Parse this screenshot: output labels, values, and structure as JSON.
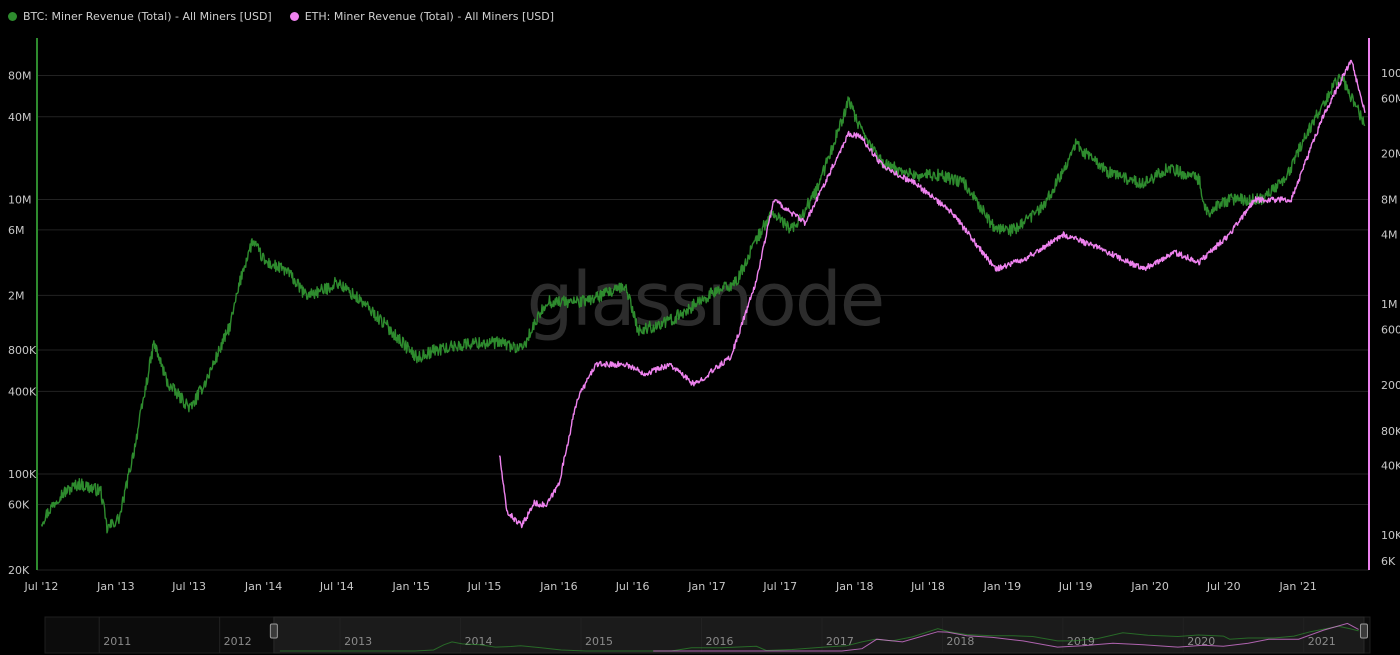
{
  "legend": [
    {
      "label": "BTC: Miner Revenue (Total) - All Miners [USD]",
      "color": "#2e8b2e"
    },
    {
      "label": "ETH: Miner Revenue (Total) - All Miners [USD]",
      "color": "#ee82ee"
    }
  ],
  "watermark": "glassnode",
  "colors": {
    "btc": "#2e8b2e",
    "eth": "#ee82ee",
    "grid": "#222222",
    "axis_left": "#2e8b2e",
    "axis_right": "#ee82ee"
  },
  "chart_data": {
    "type": "line",
    "x_ticks": [
      "Jul '12",
      "Jan '13",
      "Jul '13",
      "Jan '14",
      "Jul '14",
      "Jan '15",
      "Jul '15",
      "Jan '16",
      "Jul '16",
      "Jan '17",
      "Jul '17",
      "Jan '18",
      "Jul '18",
      "Jan '19",
      "Jul '19",
      "Jan '20",
      "Jul '20",
      "Jan '21"
    ],
    "x_range": [
      "2012-06-20",
      "2021-06-25"
    ],
    "y_left": {
      "scale": "log",
      "range": [
        20000,
        150000000
      ],
      "ticks": [
        "20K",
        "60K",
        "100K",
        "400K",
        "800K",
        "2M",
        "6M",
        "10M",
        "40M",
        "80M"
      ],
      "color": "#2e8b2e"
    },
    "y_right": {
      "scale": "log",
      "range": [
        5000,
        200000000
      ],
      "ticks": [
        "6K",
        "10K",
        "40K",
        "80K",
        "200K",
        "600K",
        "1M",
        "4M",
        "8M",
        "20M",
        "60M",
        "100M"
      ],
      "color": "#ee82ee"
    },
    "grid": true,
    "legend_position": "top-left",
    "series": [
      {
        "name": "BTC: Miner Revenue (Total) - All Miners [USD]",
        "axis": "left",
        "color": "#2e8b2e",
        "points": [
          [
            "2012-07-01",
            45000
          ],
          [
            "2012-08-15",
            70000
          ],
          [
            "2012-10-01",
            85000
          ],
          [
            "2012-11-25",
            75000
          ],
          [
            "2012-12-10",
            40000
          ],
          [
            "2013-01-10",
            48000
          ],
          [
            "2013-02-15",
            150000
          ],
          [
            "2013-04-05",
            900000
          ],
          [
            "2013-05-10",
            450000
          ],
          [
            "2013-07-05",
            300000
          ],
          [
            "2013-08-15",
            500000
          ],
          [
            "2013-10-10",
            1200000
          ],
          [
            "2013-11-10",
            3000000
          ],
          [
            "2013-12-05",
            5000000
          ],
          [
            "2014-01-05",
            3500000
          ],
          [
            "2014-03-01",
            3000000
          ],
          [
            "2014-04-15",
            2000000
          ],
          [
            "2014-06-01",
            2200000
          ],
          [
            "2014-07-01",
            2500000
          ],
          [
            "2014-09-01",
            1800000
          ],
          [
            "2014-11-01",
            1200000
          ],
          [
            "2015-01-15",
            700000
          ],
          [
            "2015-03-01",
            800000
          ],
          [
            "2015-06-01",
            900000
          ],
          [
            "2015-08-15",
            900000
          ],
          [
            "2015-10-01",
            800000
          ],
          [
            "2015-12-01",
            1800000
          ],
          [
            "2016-03-01",
            1800000
          ],
          [
            "2016-06-15",
            2300000
          ],
          [
            "2016-07-15",
            1100000
          ],
          [
            "2016-10-01",
            1300000
          ],
          [
            "2017-01-05",
            2000000
          ],
          [
            "2017-03-15",
            2500000
          ],
          [
            "2017-05-01",
            5000000
          ],
          [
            "2017-06-10",
            8000000
          ],
          [
            "2017-08-01",
            6000000
          ],
          [
            "2017-10-01",
            12000000
          ],
          [
            "2017-12-17",
            52000000
          ],
          [
            "2018-01-20",
            30000000
          ],
          [
            "2018-03-15",
            18000000
          ],
          [
            "2018-06-01",
            15000000
          ],
          [
            "2018-08-01",
            15000000
          ],
          [
            "2018-10-01",
            13000000
          ],
          [
            "2018-12-15",
            6000000
          ],
          [
            "2019-02-01",
            6000000
          ],
          [
            "2019-04-15",
            9000000
          ],
          [
            "2019-07-01",
            25000000
          ],
          [
            "2019-09-15",
            16000000
          ],
          [
            "2019-12-15",
            13000000
          ],
          [
            "2020-02-15",
            17000000
          ],
          [
            "2020-05-01",
            14000000
          ],
          [
            "2020-05-20",
            8000000
          ],
          [
            "2020-07-15",
            10000000
          ],
          [
            "2020-10-01",
            10000000
          ],
          [
            "2020-12-01",
            14000000
          ],
          [
            "2021-01-20",
            30000000
          ],
          [
            "2021-04-15",
            80000000
          ],
          [
            "2021-05-20",
            50000000
          ],
          [
            "2021-06-15",
            35000000
          ]
        ]
      },
      {
        "name": "ETH: Miner Revenue (Total) - All Miners [USD]",
        "axis": "right",
        "color": "#ee82ee",
        "points": [
          [
            "2015-08-07",
            50000
          ],
          [
            "2015-08-25",
            16000
          ],
          [
            "2015-10-01",
            12000
          ],
          [
            "2015-11-01",
            19000
          ],
          [
            "2015-12-01",
            18000
          ],
          [
            "2016-01-01",
            28000
          ],
          [
            "2016-02-15",
            150000
          ],
          [
            "2016-04-01",
            300000
          ],
          [
            "2016-06-15",
            300000
          ],
          [
            "2016-08-01",
            250000
          ],
          [
            "2016-10-01",
            300000
          ],
          [
            "2016-12-01",
            200000
          ],
          [
            "2017-03-01",
            350000
          ],
          [
            "2017-05-01",
            1500000
          ],
          [
            "2017-06-15",
            8000000
          ],
          [
            "2017-09-01",
            5000000
          ],
          [
            "2017-12-17",
            30000000
          ],
          [
            "2018-01-15",
            28000000
          ],
          [
            "2018-03-15",
            15000000
          ],
          [
            "2018-06-01",
            11000000
          ],
          [
            "2018-09-01",
            6000000
          ],
          [
            "2018-12-15",
            2000000
          ],
          [
            "2019-03-01",
            2500000
          ],
          [
            "2019-06-01",
            4000000
          ],
          [
            "2019-09-01",
            3000000
          ],
          [
            "2019-12-15",
            2000000
          ],
          [
            "2020-03-01",
            2800000
          ],
          [
            "2020-05-01",
            2300000
          ],
          [
            "2020-07-15",
            4000000
          ],
          [
            "2020-09-15",
            8000000
          ],
          [
            "2020-12-15",
            8000000
          ],
          [
            "2021-03-01",
            40000000
          ],
          [
            "2021-05-12",
            130000000
          ],
          [
            "2021-06-15",
            45000000
          ]
        ]
      }
    ]
  },
  "navigator": {
    "years": [
      "2011",
      "2012",
      "2013",
      "2014",
      "2015",
      "2016",
      "2017",
      "2018",
      "2019",
      "2020",
      "2021"
    ],
    "selection": {
      "start_year_fraction": 2012.45,
      "end_year_fraction": 2021.5
    },
    "range": [
      2010.55,
      2021.55
    ]
  }
}
